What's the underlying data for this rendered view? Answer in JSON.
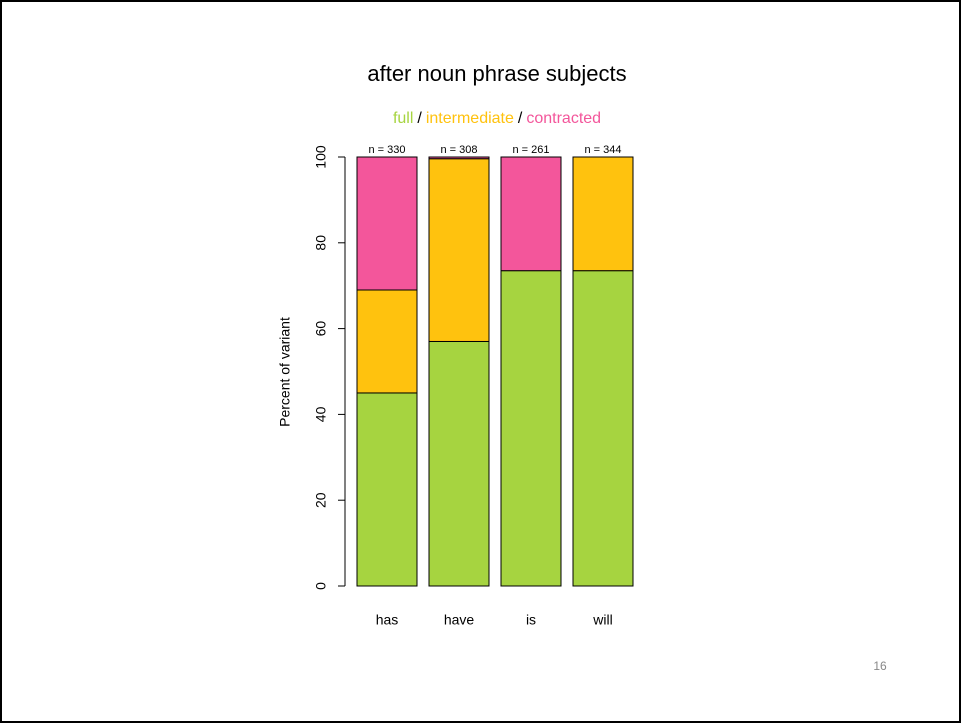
{
  "chart_data": {
    "type": "stacked_bar",
    "title": "after noun phrase subjects",
    "y_label": "Percent of variant",
    "categories": [
      "has",
      "have",
      "is",
      "will"
    ],
    "bar_labels": [
      "n = 330",
      "n = 308",
      "n = 261",
      "n = 344"
    ],
    "series": [
      {
        "name": "full",
        "color": "#a6d440",
        "values": [
          45,
          57,
          73.5,
          73.5
        ]
      },
      {
        "name": "intermediate",
        "color": "#ffc20e",
        "values": [
          24,
          42.6,
          0,
          26.5
        ]
      },
      {
        "name": "contracted",
        "color": "#f3569b",
        "values": [
          31,
          0.4,
          26.5,
          0
        ]
      }
    ],
    "legend_separators": [
      "/",
      "/"
    ],
    "ylim": [
      0,
      100
    ],
    "yticks": [
      0,
      20,
      40,
      60,
      80,
      100
    ]
  },
  "slide_number": "16"
}
